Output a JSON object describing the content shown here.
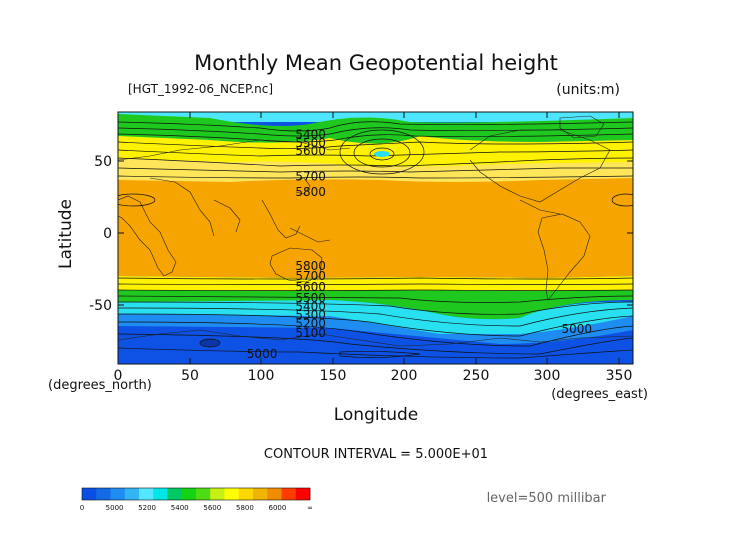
{
  "chart_data": {
    "type": "heatmap",
    "title": "Monthly Mean Geopotential height",
    "file_label": "[HGT_1992-06_NCEP.nc]",
    "units_label": "(units:m)",
    "xlabel": "Longitude",
    "ylabel": "Latitude",
    "x_unit_label": "(degrees_east)",
    "y_unit_label": "(degrees_north)",
    "xlim": [
      0,
      360
    ],
    "ylim": [
      -90,
      90
    ],
    "x_ticks": [
      "0",
      "50",
      "100",
      "150",
      "200",
      "250",
      "300",
      "350"
    ],
    "y_ticks": [
      "50",
      "0",
      "-50"
    ],
    "contour_interval": "CONTOUR INTERVAL = 5.000E+01",
    "level": "level=500 millibar",
    "contour_labels": [
      {
        "text": "5400",
        "lon": 124,
        "lat": 74
      },
      {
        "text": "5500",
        "lon": 124,
        "lat": 68
      },
      {
        "text": "5600",
        "lon": 124,
        "lat": 62
      },
      {
        "text": "5700",
        "lon": 124,
        "lat": 44
      },
      {
        "text": "5800",
        "lon": 124,
        "lat": 33
      },
      {
        "text": "5800",
        "lon": 124,
        "lat": -20
      },
      {
        "text": "5700",
        "lon": 124,
        "lat": -27
      },
      {
        "text": "5600",
        "lon": 124,
        "lat": -35
      },
      {
        "text": "5500",
        "lon": 124,
        "lat": -43
      },
      {
        "text": "5400",
        "lon": 124,
        "lat": -49
      },
      {
        "text": "5300",
        "lon": 124,
        "lat": -55
      },
      {
        "text": "5200",
        "lon": 124,
        "lat": -61
      },
      {
        "text": "5100",
        "lon": 124,
        "lat": -68
      },
      {
        "text": "5000",
        "lon": 310,
        "lat": -65
      },
      {
        "text": "5000",
        "lon": 90,
        "lat": -83
      }
    ],
    "colorbar": {
      "colors": [
        "#0a4ee6",
        "#1469e6",
        "#1e8cf0",
        "#32b4f5",
        "#55e6ff",
        "#00e6e6",
        "#00c864",
        "#14d214",
        "#50dc14",
        "#c8f014",
        "#ffff00",
        "#ffd700",
        "#f0b400",
        "#f08c00",
        "#ff3c00",
        "#ff0000"
      ],
      "labels": [
        "0",
        "5000",
        "5200",
        "5400",
        "5600",
        "5800",
        "6000",
        "∞"
      ]
    }
  }
}
